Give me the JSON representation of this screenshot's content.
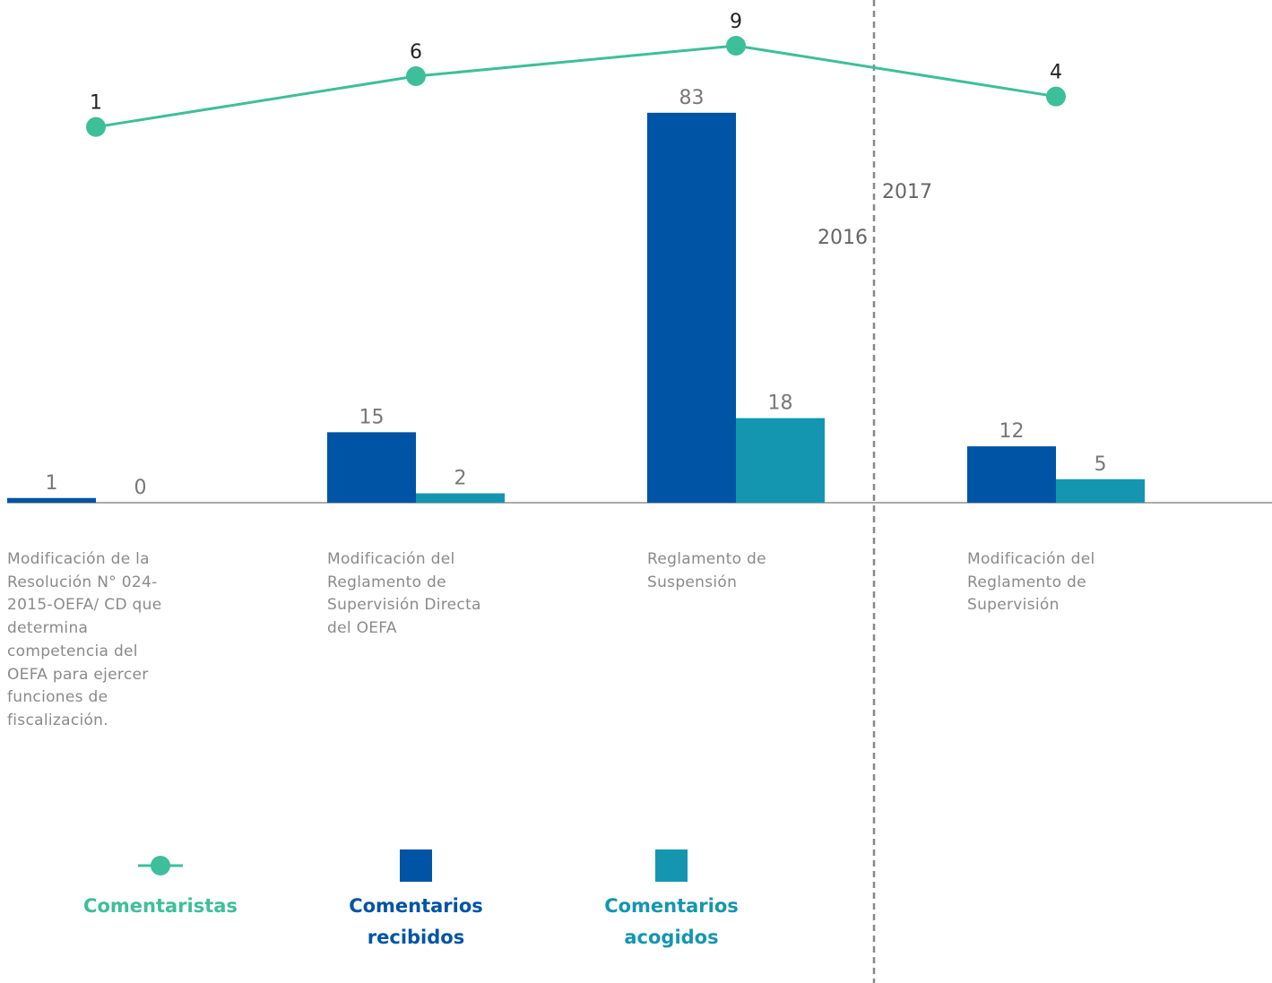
{
  "chart_data": {
    "type": "bar",
    "categories": [
      "Modificación de la Resolución N° 024-2015-OEFA/ CD que determina competencia del OEFA para ejercer funciones de fiscalización.",
      "Modificación del Reglamento de Supervisión Directa del OEFA",
      "Reglamento de Suspensión",
      "Modificación del Reglamento de Supervisión"
    ],
    "series": [
      {
        "name": "Comentarios recibidos",
        "color": "#0054a6",
        "values": [
          1,
          15,
          83,
          12
        ]
      },
      {
        "name": "Comentarios acogidos",
        "color": "#1496b0",
        "values": [
          0,
          2,
          18,
          5
        ]
      },
      {
        "name": "Comentaristas",
        "type": "line",
        "axis": "y2",
        "color": "#3dbf9a",
        "values": [
          1,
          6,
          9,
          4
        ]
      }
    ],
    "ylim": [
      0,
      107
    ],
    "y2lim": [
      -36,
      13.5
    ],
    "annotations": [
      "2016",
      "2017"
    ]
  }
}
